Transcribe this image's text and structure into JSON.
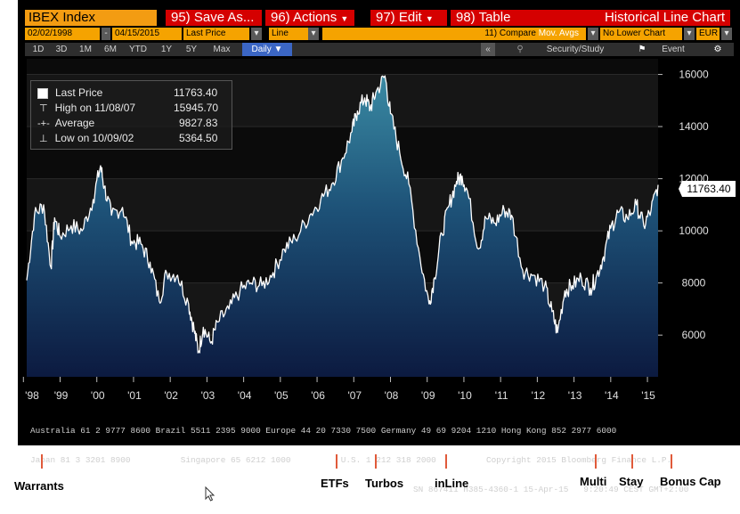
{
  "toolbar": {
    "ticker": "IBEX Index",
    "save_as": "95) Save As...",
    "actions": "96) Actions",
    "edit": "97) Edit",
    "table": "98) Table",
    "chart_title": "Historical Line Chart",
    "date_from": "02/02/1998",
    "date_to": "04/15/2015",
    "field": "Last Price",
    "style": "Line",
    "compare": "11) Compare",
    "compare_value": "Mov. Avgs",
    "lower_chart": "No Lower Chart",
    "currency": "EUR",
    "periods": [
      "1D",
      "3D",
      "1M",
      "6M",
      "YTD",
      "1Y",
      "5Y",
      "Max"
    ],
    "frequency": "Daily",
    "security_study": "Security/Study",
    "event": "Event"
  },
  "legend": [
    {
      "label": "Last Price",
      "value": "11763.40"
    },
    {
      "label": "High on 11/08/07",
      "value": "15945.70"
    },
    {
      "label": "Average",
      "value": "9827.83"
    },
    {
      "label": "Low on 10/09/02",
      "value": "5364.50"
    }
  ],
  "price_tag": "11763.40",
  "footer": {
    "line1": "Australia 61 2 9777 8600 Brazil 5511 2395 9000 Europe 44 20 7330 7500 Germany 49 69 9204 1210 Hong Kong 852 2977 6000",
    "line2": "Japan 81 3 3201 8900          Singapore 65 6212 1000          U.S. 1 212 318 2000          Copyright 2015 Bloomberg Finance L.P.",
    "line3": "SN 867411 H385-4360-1 15-Apr-15   9:20:49 CEST GMT+2:00"
  },
  "bottom_labels": [
    "Warrants",
    "ETFs",
    "Turbos",
    "inLine",
    "Multi",
    "Stay",
    "Bonus Cap"
  ],
  "colors": {
    "accent_orange": "#f39c12",
    "menu_red": "#d50000",
    "area_top": "#2e7d96",
    "area_bottom": "#0c1a40",
    "line": "#ffffff"
  },
  "chart_data": {
    "type": "area",
    "title": "",
    "x_tick_labels": [
      "'98",
      "'99",
      "'00",
      "'01",
      "'02",
      "'03",
      "'04",
      "'05",
      "'06",
      "'07",
      "'08",
      "'09",
      "'10",
      "'11",
      "'12",
      "'13",
      "'14",
      "'15"
    ],
    "y_ticks": [
      6000,
      8000,
      10000,
      12000,
      14000,
      16000
    ],
    "ylim": [
      4400,
      16600
    ],
    "xlim": [
      1998.09,
      2015.29
    ],
    "y_axis_side": "right",
    "grid": true,
    "series": [
      {
        "name": "Last Price",
        "x": [
          1998.09,
          1998.3,
          1998.55,
          1998.75,
          1998.85,
          1999.0,
          1999.3,
          1999.6,
          1999.9,
          2000.1,
          2000.2,
          2000.4,
          2000.7,
          2000.95,
          2001.2,
          2001.45,
          2001.7,
          2001.9,
          2002.2,
          2002.5,
          2002.65,
          2002.77,
          2002.9,
          2003.1,
          2003.3,
          2003.6,
          2003.9,
          2004.2,
          2004.5,
          2004.8,
          2005.1,
          2005.4,
          2005.8,
          2006.1,
          2006.4,
          2006.7,
          2006.95,
          2007.1,
          2007.3,
          2007.45,
          2007.6,
          2007.85,
          2008.0,
          2008.25,
          2008.5,
          2008.8,
          2009.05,
          2009.2,
          2009.4,
          2009.6,
          2009.8,
          2009.95,
          2010.1,
          2010.4,
          2010.6,
          2010.85,
          2011.1,
          2011.3,
          2011.6,
          2011.9,
          2012.2,
          2012.4,
          2012.55,
          2012.75,
          2012.95,
          2013.2,
          2013.45,
          2013.6,
          2013.8,
          2014.0,
          2014.2,
          2014.45,
          2014.7,
          2014.9,
          2015.1,
          2015.29
        ],
        "values": [
          8100,
          10600,
          11000,
          8600,
          10500,
          9800,
          10200,
          10000,
          11200,
          12500,
          11700,
          10600,
          10900,
          9600,
          9500,
          8800,
          7300,
          8400,
          8300,
          7200,
          6200,
          5364,
          6300,
          5700,
          6500,
          7000,
          7700,
          8000,
          7900,
          8400,
          9300,
          9700,
          10600,
          11200,
          11800,
          12800,
          13800,
          14600,
          15100,
          14700,
          15300,
          15945,
          14500,
          13000,
          11800,
          9000,
          7200,
          8200,
          9900,
          11000,
          11900,
          12100,
          11500,
          9300,
          10500,
          10300,
          10800,
          10600,
          8500,
          8300,
          7900,
          6900,
          6100,
          7700,
          7900,
          8200,
          7800,
          8200,
          9000,
          10100,
          10700,
          10500,
          11000,
          10200,
          10800,
          11763
        ]
      }
    ]
  }
}
